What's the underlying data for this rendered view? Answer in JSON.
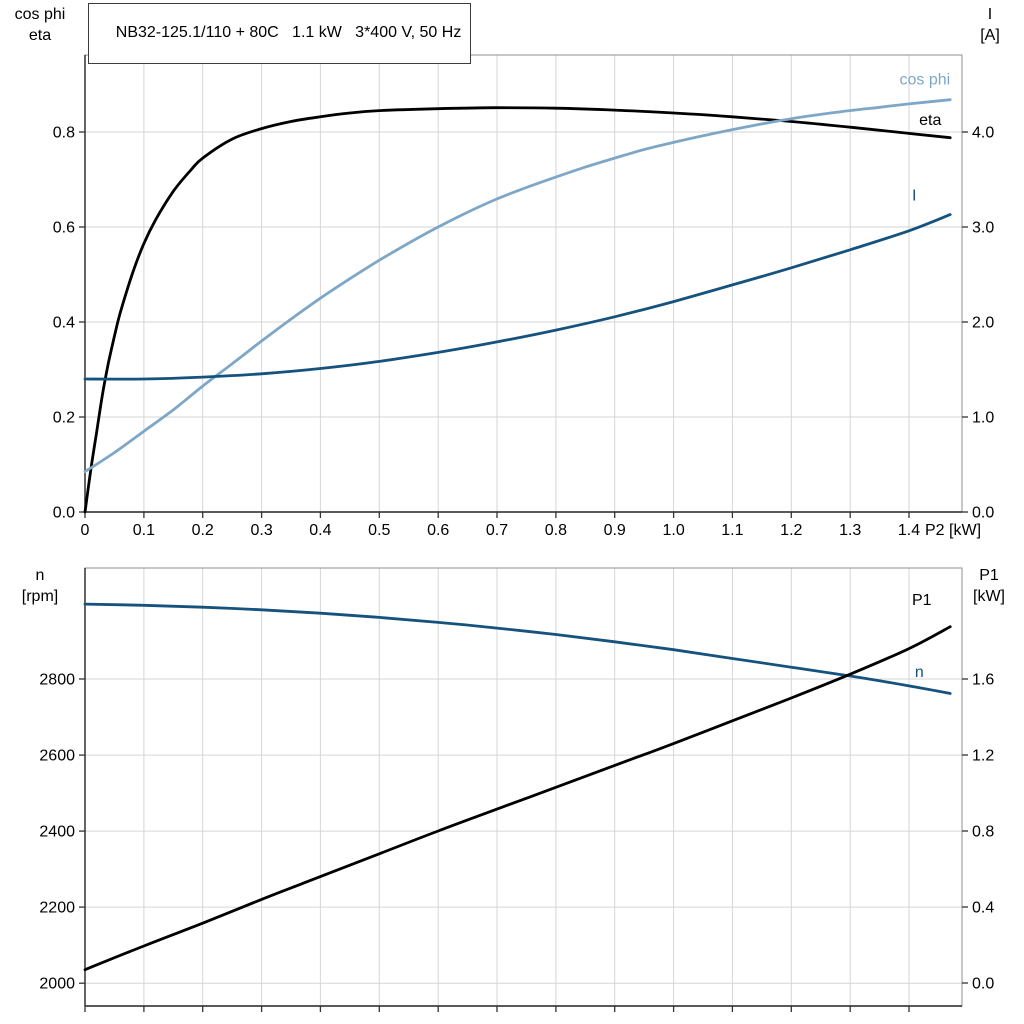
{
  "title_box": {
    "text": "NB32-125.1/110 + 80C   1.1 kW   3*400 V, 50 Hz"
  },
  "axis_corner_labels": {
    "top_left": [
      "cos phi",
      "eta"
    ],
    "top_right": [
      "I",
      "[A]"
    ],
    "bottom_left": [
      "n",
      "[rpm]"
    ],
    "bottom_right": [
      "P1",
      "[kW]"
    ]
  },
  "colors": {
    "eta": "#000000",
    "cos_phi": "#7ea7c7",
    "current": "#16527e",
    "speed": "#16527e",
    "p1": "#000000",
    "grid": "#d6d6d6",
    "frame": "#8f8f8f",
    "axis": "#222222",
    "tick": "#333333",
    "text": "#000000"
  },
  "chart_data": [
    {
      "type": "line",
      "title": "Motor efficiency, power factor and current vs shaft power",
      "x_axis": {
        "label": "P2 [kW]",
        "min": 0,
        "max": 1.49,
        "ticks": [
          {
            "v": 0,
            "label": "0"
          },
          {
            "v": 0.1,
            "label": "0.1"
          },
          {
            "v": 0.2,
            "label": "0.2"
          },
          {
            "v": 0.3,
            "label": "0.3"
          },
          {
            "v": 0.4,
            "label": "0.4"
          },
          {
            "v": 0.5,
            "label": "0.5"
          },
          {
            "v": 0.6,
            "label": "0.6"
          },
          {
            "v": 0.7,
            "label": "0.7"
          },
          {
            "v": 0.8,
            "label": "0.8"
          },
          {
            "v": 0.9,
            "label": "0.9"
          },
          {
            "v": 1.0,
            "label": "1.0"
          },
          {
            "v": 1.1,
            "label": "1.1"
          },
          {
            "v": 1.2,
            "label": "1.2"
          },
          {
            "v": 1.3,
            "label": "1.3"
          },
          {
            "v": 1.4,
            "label": "1.4"
          }
        ]
      },
      "left_axis": {
        "label": "cos phi / eta",
        "min": 0,
        "max": 0.962,
        "ticks": [
          {
            "v": 0.0,
            "label": "0.0"
          },
          {
            "v": 0.2,
            "label": "0.2"
          },
          {
            "v": 0.4,
            "label": "0.4"
          },
          {
            "v": 0.6,
            "label": "0.6"
          },
          {
            "v": 0.8,
            "label": "0.8"
          }
        ]
      },
      "right_axis": {
        "label": "I [A]",
        "min": 0,
        "max": 4.81,
        "ticks": [
          {
            "v": 0.0,
            "label": "0.0"
          },
          {
            "v": 1.0,
            "label": "1.0"
          },
          {
            "v": 2.0,
            "label": "2.0"
          },
          {
            "v": 3.0,
            "label": "3.0"
          },
          {
            "v": 4.0,
            "label": "4.0"
          }
        ]
      },
      "series": [
        {
          "id": "eta",
          "name": "eta",
          "axis": "left",
          "color": "#000000",
          "width": 2.8,
          "label": {
            "x": 1.455,
            "y": 0.815,
            "anchor": "end"
          },
          "points": [
            [
              0,
              0
            ],
            [
              0.01,
              0.09
            ],
            [
              0.02,
              0.17
            ],
            [
              0.03,
              0.25
            ],
            [
              0.04,
              0.315
            ],
            [
              0.05,
              0.37
            ],
            [
              0.06,
              0.42
            ],
            [
              0.08,
              0.5
            ],
            [
              0.1,
              0.565
            ],
            [
              0.12,
              0.615
            ],
            [
              0.15,
              0.675
            ],
            [
              0.18,
              0.72
            ],
            [
              0.2,
              0.745
            ],
            [
              0.25,
              0.785
            ],
            [
              0.3,
              0.807
            ],
            [
              0.35,
              0.822
            ],
            [
              0.4,
              0.832
            ],
            [
              0.45,
              0.84
            ],
            [
              0.5,
              0.845
            ],
            [
              0.6,
              0.849
            ],
            [
              0.7,
              0.851
            ],
            [
              0.8,
              0.85
            ],
            [
              0.9,
              0.846
            ],
            [
              1.0,
              0.84
            ],
            [
              1.1,
              0.832
            ],
            [
              1.2,
              0.822
            ],
            [
              1.3,
              0.81
            ],
            [
              1.4,
              0.797
            ],
            [
              1.47,
              0.788
            ]
          ]
        },
        {
          "id": "cos-phi",
          "name": "cos phi",
          "axis": "left",
          "color": "#7ea7c7",
          "width": 2.8,
          "label": {
            "x": 1.47,
            "y": 0.9,
            "anchor": "end"
          },
          "points": [
            [
              0,
              0.085
            ],
            [
              0.05,
              0.125
            ],
            [
              0.1,
              0.17
            ],
            [
              0.15,
              0.215
            ],
            [
              0.2,
              0.265
            ],
            [
              0.25,
              0.312
            ],
            [
              0.3,
              0.36
            ],
            [
              0.35,
              0.406
            ],
            [
              0.4,
              0.45
            ],
            [
              0.45,
              0.491
            ],
            [
              0.5,
              0.53
            ],
            [
              0.55,
              0.566
            ],
            [
              0.6,
              0.6
            ],
            [
              0.65,
              0.631
            ],
            [
              0.7,
              0.659
            ],
            [
              0.75,
              0.683
            ],
            [
              0.8,
              0.705
            ],
            [
              0.85,
              0.726
            ],
            [
              0.9,
              0.745
            ],
            [
              0.95,
              0.763
            ],
            [
              1.0,
              0.778
            ],
            [
              1.05,
              0.792
            ],
            [
              1.1,
              0.805
            ],
            [
              1.15,
              0.817
            ],
            [
              1.2,
              0.828
            ],
            [
              1.25,
              0.837
            ],
            [
              1.3,
              0.845
            ],
            [
              1.35,
              0.852
            ],
            [
              1.4,
              0.859
            ],
            [
              1.47,
              0.868
            ]
          ]
        },
        {
          "id": "current-I",
          "name": "I",
          "axis": "right",
          "color": "#16527e",
          "width": 2.8,
          "label": {
            "x": 1.405,
            "y": 3.28,
            "anchor": "start"
          },
          "points": [
            [
              0,
              1.4
            ],
            [
              0.1,
              1.4
            ],
            [
              0.2,
              1.42
            ],
            [
              0.3,
              1.455
            ],
            [
              0.4,
              1.51
            ],
            [
              0.5,
              1.585
            ],
            [
              0.6,
              1.68
            ],
            [
              0.7,
              1.79
            ],
            [
              0.8,
              1.915
            ],
            [
              0.9,
              2.055
            ],
            [
              1.0,
              2.215
            ],
            [
              1.1,
              2.39
            ],
            [
              1.2,
              2.57
            ],
            [
              1.3,
              2.76
            ],
            [
              1.4,
              2.96
            ],
            [
              1.47,
              3.13
            ]
          ]
        }
      ]
    },
    {
      "type": "line",
      "title": "Motor speed and input power vs shaft power",
      "x_axis": {
        "label": "",
        "min": 0,
        "max": 1.49,
        "ticks": [
          {
            "v": 0,
            "label": ""
          },
          {
            "v": 0.1,
            "label": ""
          },
          {
            "v": 0.2,
            "label": ""
          },
          {
            "v": 0.3,
            "label": ""
          },
          {
            "v": 0.4,
            "label": ""
          },
          {
            "v": 0.5,
            "label": ""
          },
          {
            "v": 0.6,
            "label": ""
          },
          {
            "v": 0.7,
            "label": ""
          },
          {
            "v": 0.8,
            "label": ""
          },
          {
            "v": 0.9,
            "label": ""
          },
          {
            "v": 1.0,
            "label": ""
          },
          {
            "v": 1.1,
            "label": ""
          },
          {
            "v": 1.2,
            "label": ""
          },
          {
            "v": 1.3,
            "label": ""
          },
          {
            "v": 1.4,
            "label": ""
          }
        ]
      },
      "left_axis": {
        "label": "n [rpm]",
        "min": 1940,
        "max": 3092,
        "ticks": [
          {
            "v": 2000,
            "label": "2000"
          },
          {
            "v": 2200,
            "label": "2200"
          },
          {
            "v": 2400,
            "label": "2400"
          },
          {
            "v": 2600,
            "label": "2600"
          },
          {
            "v": 2800,
            "label": "2800"
          }
        ]
      },
      "right_axis": {
        "label": "P1 [kW]",
        "min": -0.121,
        "max": 2.184,
        "ticks": [
          {
            "v": 0.0,
            "label": "0.0"
          },
          {
            "v": 0.4,
            "label": "0.4"
          },
          {
            "v": 0.8,
            "label": "0.8"
          },
          {
            "v": 1.2,
            "label": "1.2"
          },
          {
            "v": 1.6,
            "label": "1.6"
          }
        ]
      },
      "series": [
        {
          "id": "speed-n",
          "name": "n",
          "axis": "left",
          "color": "#16527e",
          "width": 2.8,
          "label": {
            "x": 1.41,
            "y": 2805,
            "anchor": "start"
          },
          "points": [
            [
              0,
              2997
            ],
            [
              0.1,
              2994
            ],
            [
              0.2,
              2989
            ],
            [
              0.3,
              2982
            ],
            [
              0.4,
              2973
            ],
            [
              0.5,
              2962
            ],
            [
              0.6,
              2949
            ],
            [
              0.7,
              2934
            ],
            [
              0.8,
              2917
            ],
            [
              0.9,
              2898
            ],
            [
              1.0,
              2877
            ],
            [
              1.1,
              2854
            ],
            [
              1.2,
              2831
            ],
            [
              1.3,
              2808
            ],
            [
              1.4,
              2782
            ],
            [
              1.47,
              2762
            ]
          ]
        },
        {
          "id": "input-power-P1",
          "name": "P1",
          "axis": "right",
          "color": "#000000",
          "width": 2.8,
          "label": {
            "x": 1.405,
            "y": 1.99,
            "anchor": "start"
          },
          "points": [
            [
              0,
              0.07
            ],
            [
              0.1,
              0.195
            ],
            [
              0.2,
              0.315
            ],
            [
              0.3,
              0.44
            ],
            [
              0.4,
              0.56
            ],
            [
              0.5,
              0.68
            ],
            [
              0.6,
              0.8
            ],
            [
              0.7,
              0.915
            ],
            [
              0.8,
              1.03
            ],
            [
              0.9,
              1.145
            ],
            [
              1.0,
              1.26
            ],
            [
              1.1,
              1.38
            ],
            [
              1.2,
              1.5
            ],
            [
              1.3,
              1.625
            ],
            [
              1.4,
              1.76
            ],
            [
              1.47,
              1.875
            ]
          ]
        }
      ]
    }
  ]
}
